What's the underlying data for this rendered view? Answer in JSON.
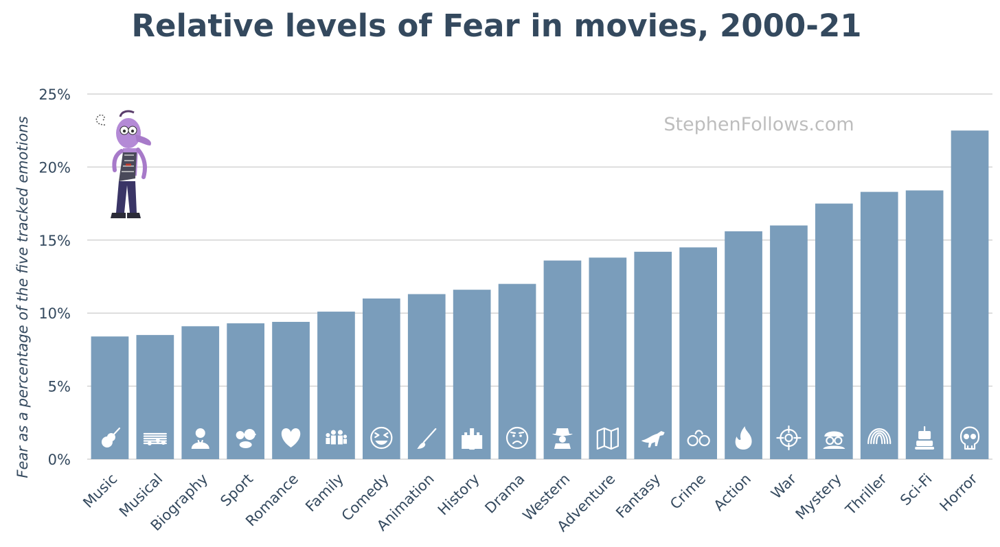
{
  "chart_data": {
    "type": "bar",
    "title": "Relative levels of Fear in movies, 2000-21",
    "xlabel": "",
    "ylabel": "Fear as a percentage of the five tracked emotions",
    "ylim": [
      0,
      25
    ],
    "yticks": [
      0,
      5,
      10,
      15,
      20,
      25
    ],
    "ytick_labels": [
      "0%",
      "5%",
      "10%",
      "15%",
      "20%",
      "25%"
    ],
    "grid": true,
    "categories": [
      "Music",
      "Musical",
      "Biography",
      "Sport",
      "Romance",
      "Family",
      "Comedy",
      "Animation",
      "History",
      "Drama",
      "Western",
      "Adventure",
      "Fantasy",
      "Crime",
      "Action",
      "War",
      "Mystery",
      "Thriller",
      "Sci-Fi",
      "Horror"
    ],
    "values": [
      8.4,
      8.5,
      9.1,
      9.3,
      9.4,
      10.1,
      11.0,
      11.3,
      11.6,
      12.0,
      13.6,
      13.8,
      14.2,
      14.5,
      15.6,
      16.0,
      17.5,
      18.3,
      18.4,
      22.5
    ],
    "icons": [
      "guitar-icon",
      "music-notes-icon",
      "person-icon",
      "sport-balls-icon",
      "heart-icon",
      "family-icon",
      "laughing-face-icon",
      "paintbrush-icon",
      "castle-icon",
      "sad-face-icon",
      "cowboy-icon",
      "map-icon",
      "dinosaur-icon",
      "handcuffs-icon",
      "fire-icon",
      "crosshair-icon",
      "detective-icon",
      "fingerprint-icon",
      "robot-icon",
      "skull-icon"
    ],
    "bar_color": "#7a9dbb",
    "watermark": "StephenFollows.com"
  },
  "colors": {
    "text": "#34495e",
    "grid": "#d3d3d3",
    "watermark": "#bdbdbd"
  }
}
